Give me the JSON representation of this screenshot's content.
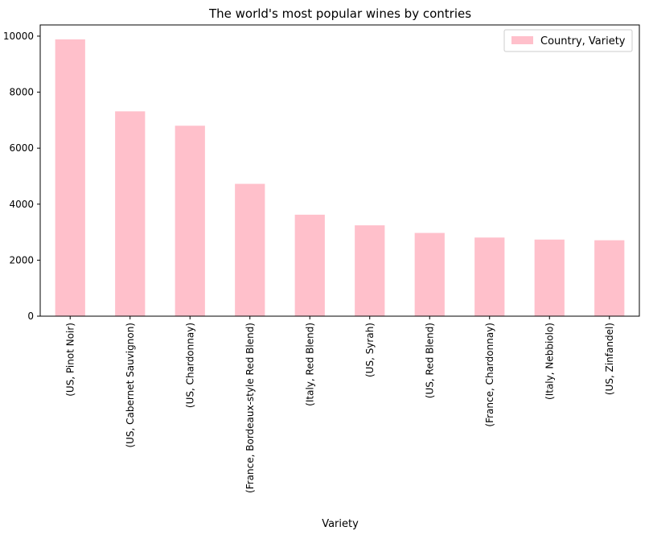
{
  "chart_data": {
    "type": "bar",
    "title": "The world's most popular wines by contries",
    "xlabel": "Variety",
    "ylabel": "",
    "categories": [
      "(US, Pinot Noir)",
      "(US, Cabernet Sauvignon)",
      "(US, Chardonnay)",
      "(France, Bordeaux-style Red Blend)",
      "(Italy, Red Blend)",
      "(US, Syrah)",
      "(US, Red Blend)",
      "(France, Chardonnay)",
      "(Italy, Nebbiolo)",
      "(US, Zinfandel)"
    ],
    "series": [
      {
        "name": "Country, Variety",
        "values": [
          9885,
          7315,
          6801,
          4725,
          3624,
          3244,
          2972,
          2808,
          2736,
          2711
        ],
        "color": "#ffc0cb"
      }
    ],
    "ylim": [
      0,
      10400
    ],
    "yticks": [
      0,
      2000,
      4000,
      6000,
      8000,
      10000
    ],
    "legend": "top-right",
    "grid": false
  }
}
